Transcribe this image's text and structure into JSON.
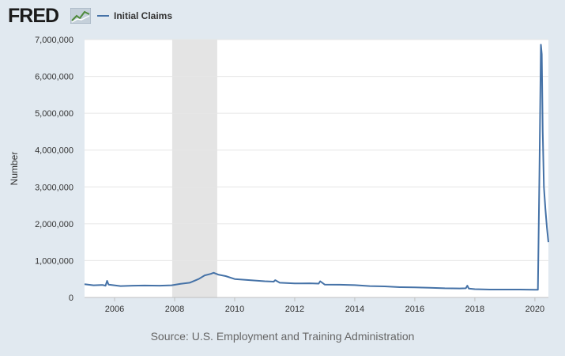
{
  "logo": {
    "text": "FRED"
  },
  "legend": {
    "label": "Initial Claims",
    "color": "#4572a7"
  },
  "source": "Source: U.S. Employment and Training Administration",
  "chart_data": {
    "type": "line",
    "title": "",
    "xlabel": "",
    "ylabel": "Number",
    "xlim": [
      2005.0,
      2020.45
    ],
    "ylim": [
      0,
      7000000
    ],
    "x_ticks": [
      2006,
      2008,
      2010,
      2012,
      2014,
      2016,
      2018,
      2020
    ],
    "x_tick_labels": [
      "2006",
      "2008",
      "2010",
      "2012",
      "2014",
      "2016",
      "2018",
      "2020"
    ],
    "y_ticks": [
      0,
      1000000,
      2000000,
      3000000,
      4000000,
      5000000,
      6000000,
      7000000
    ],
    "y_tick_labels": [
      "0",
      "1,000,000",
      "2,000,000",
      "3,000,000",
      "4,000,000",
      "5,000,000",
      "6,000,000",
      "7,000,000"
    ],
    "grid": {
      "horizontal": true,
      "vertical": false
    },
    "recession_shading": [
      [
        2007.92,
        2009.42
      ]
    ],
    "series": [
      {
        "name": "Initial Claims",
        "color": "#4572a7",
        "x": [
          2005.0,
          2005.3,
          2005.6,
          2005.7,
          2005.75,
          2005.8,
          2006.2,
          2006.6,
          2007.0,
          2007.5,
          2007.9,
          2008.2,
          2008.5,
          2008.8,
          2009.0,
          2009.2,
          2009.3,
          2009.45,
          2009.7,
          2010.0,
          2010.5,
          2011.0,
          2011.3,
          2011.35,
          2011.5,
          2012.0,
          2012.5,
          2012.8,
          2012.85,
          2013.0,
          2013.5,
          2014.0,
          2014.5,
          2015.0,
          2015.5,
          2016.0,
          2016.5,
          2017.0,
          2017.5,
          2017.7,
          2017.75,
          2017.8,
          2018.0,
          2018.5,
          2019.0,
          2019.5,
          2020.0,
          2020.1,
          2020.15,
          2020.2,
          2020.23,
          2020.26,
          2020.3,
          2020.35,
          2020.4,
          2020.45
        ],
        "y": [
          360000,
          330000,
          340000,
          320000,
          450000,
          350000,
          310000,
          320000,
          325000,
          320000,
          330000,
          370000,
          400000,
          500000,
          600000,
          640000,
          670000,
          620000,
          580000,
          500000,
          470000,
          440000,
          430000,
          470000,
          400000,
          380000,
          385000,
          375000,
          440000,
          350000,
          345000,
          335000,
          310000,
          300000,
          280000,
          275000,
          265000,
          250000,
          245000,
          250000,
          320000,
          240000,
          225000,
          215000,
          215000,
          215000,
          210000,
          211000,
          3300000,
          6860000,
          6600000,
          4500000,
          3000000,
          2400000,
          1900000,
          1500000
        ]
      }
    ]
  }
}
